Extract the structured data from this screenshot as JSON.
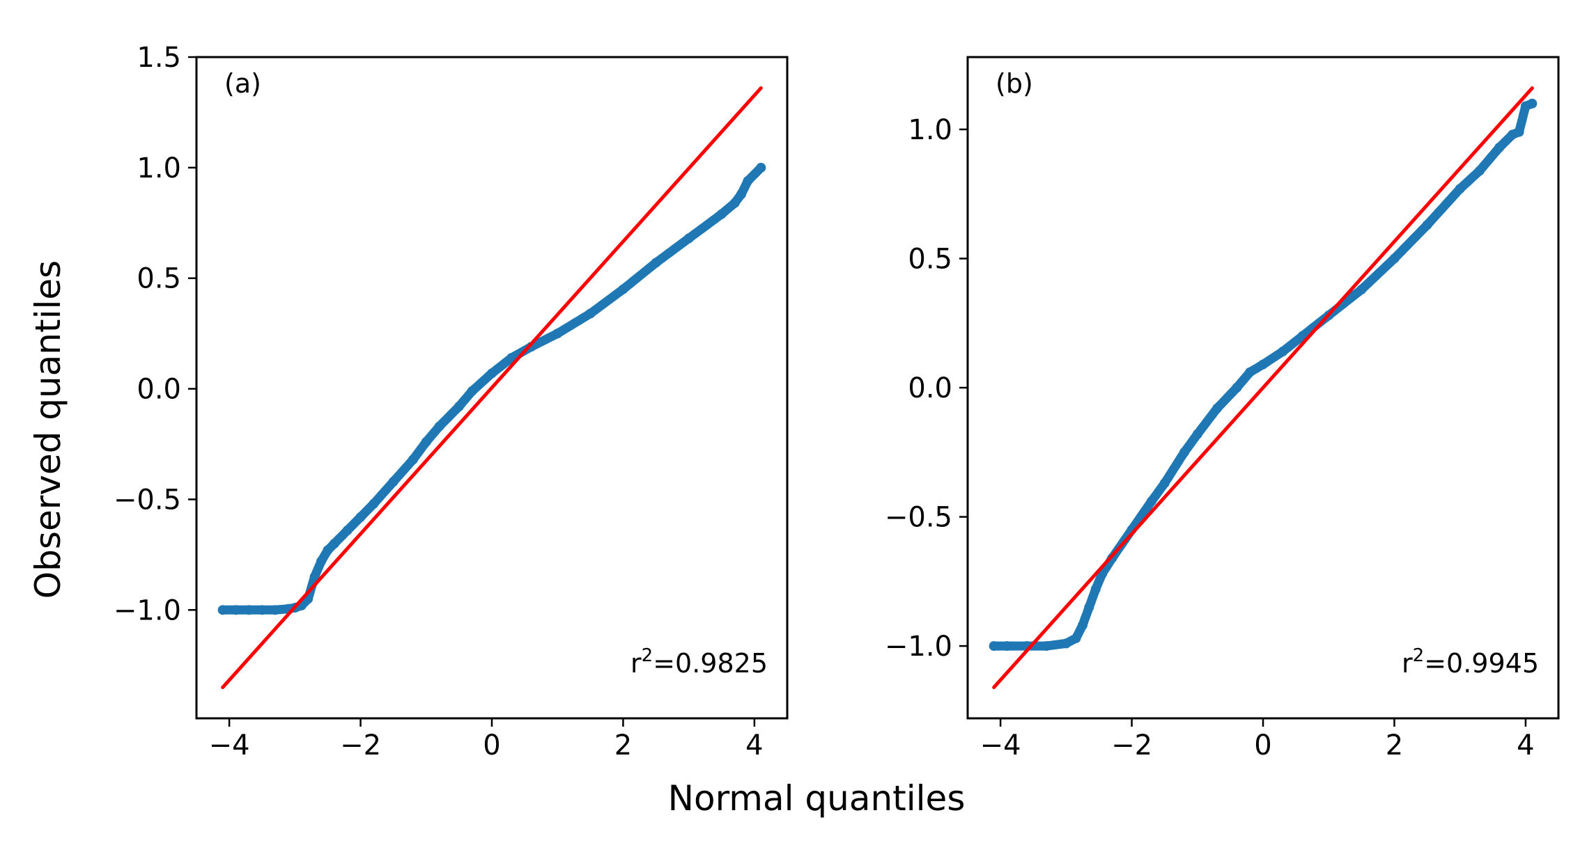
{
  "figure": {
    "xlabel": "Normal quantiles",
    "ylabel": "Observed quantiles"
  },
  "chart_data": [
    {
      "type": "scatter",
      "panel_label": "(a)",
      "annotation": {
        "prefix": "r",
        "superscript": "2",
        "suffix": "=0.9825"
      },
      "xlabel": "Normal quantiles",
      "ylabel": "Observed quantiles",
      "xlim": [
        -4.5,
        4.5
      ],
      "ylim": [
        -1.49,
        1.5
      ],
      "xticks": [
        -4,
        -2,
        0,
        2,
        4
      ],
      "xtick_labels": [
        "−4",
        "−2",
        "0",
        "2",
        "4"
      ],
      "yticks": [
        -1.0,
        -0.5,
        0.0,
        0.5,
        1.0,
        1.5
      ],
      "ytick_labels": [
        "−1.0",
        "−0.5",
        "0.0",
        "0.5",
        "1.0",
        "1.5"
      ],
      "series": [
        {
          "name": "Observed vs normal quantiles",
          "color": "#1f77b4",
          "x": [
            -4.1,
            -3.9,
            -3.7,
            -3.5,
            -3.3,
            -3.1,
            -3.0,
            -2.9,
            -2.8,
            -2.7,
            -2.6,
            -2.5,
            -2.4,
            -2.2,
            -2.0,
            -1.8,
            -1.5,
            -1.2,
            -1.0,
            -0.8,
            -0.5,
            -0.3,
            0.0,
            0.3,
            0.6,
            1.0,
            1.5,
            2.0,
            2.5,
            3.0,
            3.5,
            3.7,
            3.8,
            3.9,
            4.1
          ],
          "y": [
            -1.0,
            -1.0,
            -1.0,
            -1.0,
            -1.0,
            -0.995,
            -0.99,
            -0.98,
            -0.95,
            -0.85,
            -0.78,
            -0.73,
            -0.7,
            -0.64,
            -0.58,
            -0.52,
            -0.42,
            -0.32,
            -0.24,
            -0.17,
            -0.08,
            -0.01,
            0.07,
            0.14,
            0.19,
            0.25,
            0.34,
            0.45,
            0.57,
            0.68,
            0.79,
            0.84,
            0.88,
            0.94,
            1.0
          ]
        },
        {
          "name": "Reference line",
          "type": "line",
          "color": "#ff0000",
          "x": [
            -4.1,
            4.1
          ],
          "y": [
            -1.35,
            1.36
          ]
        }
      ]
    },
    {
      "type": "scatter",
      "panel_label": "(b)",
      "annotation": {
        "prefix": "r",
        "superscript": "2",
        "suffix": "=0.9945"
      },
      "xlabel": "Normal quantiles",
      "ylabel": "Observed quantiles",
      "xlim": [
        -4.5,
        4.5
      ],
      "ylim": [
        -1.28,
        1.28
      ],
      "xticks": [
        -4,
        -2,
        0,
        2,
        4
      ],
      "xtick_labels": [
        "−4",
        "−2",
        "0",
        "2",
        "4"
      ],
      "yticks": [
        -1.0,
        -0.5,
        0.0,
        0.5,
        1.0
      ],
      "ytick_labels": [
        "−1.0",
        "−0.5",
        "0.0",
        "0.5",
        "1.0"
      ],
      "series": [
        {
          "name": "Observed vs normal quantiles",
          "color": "#1f77b4",
          "x": [
            -4.1,
            -3.9,
            -3.6,
            -3.3,
            -3.0,
            -2.85,
            -2.75,
            -2.65,
            -2.55,
            -2.45,
            -2.3,
            -2.0,
            -1.7,
            -1.5,
            -1.2,
            -1.0,
            -0.7,
            -0.4,
            -0.2,
            0.0,
            0.3,
            0.6,
            1.0,
            1.5,
            2.0,
            2.5,
            3.0,
            3.3,
            3.6,
            3.8,
            3.9,
            4.0,
            4.1
          ],
          "y": [
            -1.0,
            -1.0,
            -1.0,
            -1.0,
            -0.99,
            -0.97,
            -0.92,
            -0.85,
            -0.78,
            -0.72,
            -0.66,
            -0.55,
            -0.44,
            -0.37,
            -0.25,
            -0.18,
            -0.08,
            0.0,
            0.06,
            0.09,
            0.14,
            0.2,
            0.28,
            0.38,
            0.5,
            0.63,
            0.77,
            0.84,
            0.93,
            0.98,
            0.99,
            1.09,
            1.1
          ]
        },
        {
          "name": "Reference line",
          "type": "line",
          "color": "#ff0000",
          "x": [
            -4.1,
            4.1
          ],
          "y": [
            -1.16,
            1.16
          ]
        }
      ]
    }
  ]
}
